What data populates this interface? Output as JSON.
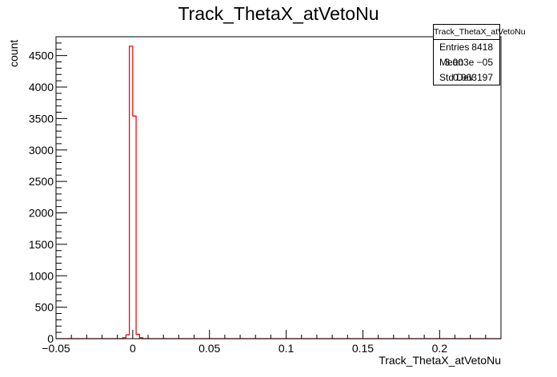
{
  "chart_data": {
    "type": "histogram",
    "title": "Track_ThetaX_atVetoNu",
    "xlabel": "Track_ThetaX_atVetoNu",
    "ylabel": "count",
    "xlim": [
      -0.05,
      0.24
    ],
    "ylim": [
      0,
      4800
    ],
    "x_ticks": [
      -0.05,
      0,
      0.05,
      0.1,
      0.15,
      0.2
    ],
    "x_tick_labels": [
      "−0.05",
      "0",
      "0.05",
      "0.1",
      "0.15",
      "0.2"
    ],
    "y_ticks": [
      0,
      500,
      1000,
      1500,
      2000,
      2500,
      3000,
      3500,
      4000,
      4500
    ],
    "y_tick_labels": [
      "0",
      "500",
      "1000",
      "1500",
      "2000",
      "2500",
      "3000",
      "3500",
      "4000",
      "4500"
    ],
    "line_color": "#dd0000",
    "bins": [
      {
        "x0": -0.0066,
        "x1": -0.0044,
        "value": 15
      },
      {
        "x0": -0.0044,
        "x1": -0.0022,
        "value": 60
      },
      {
        "x0": -0.0022,
        "x1": 0.0,
        "value": 4650
      },
      {
        "x0": 0.0,
        "x1": 0.0022,
        "value": 3540
      },
      {
        "x0": 0.0022,
        "x1": 0.0044,
        "value": 70
      },
      {
        "x0": 0.0044,
        "x1": 0.0066,
        "value": 15
      }
    ]
  },
  "stats": {
    "title": "Track_ThetaX_atVetoNu",
    "entries_label": "Entries",
    "entries_value": "8418",
    "mean_label": "Mean",
    "mean_value": "3.003e −05",
    "std_label": "Std Dev",
    "std_value": "0.003197"
  }
}
